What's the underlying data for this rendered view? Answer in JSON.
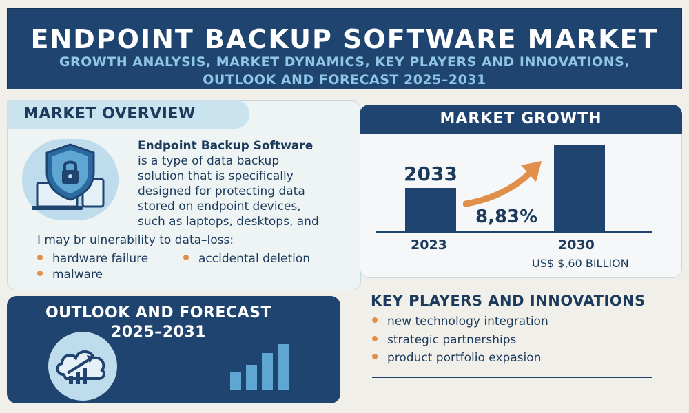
{
  "header": {
    "title": "ENDPOINT BACKUP SOFTWARE MARKET",
    "subtitle_line1": "GROWTH ANALYSIS, MARKET DYNAMICS, KEY PLAYERS AND INNOVATIONS,",
    "subtitle_line2": "OUTLOOK AND FORECAST 2025–2031"
  },
  "overview": {
    "heading": "MARKET OVERVIEW",
    "lead": "Endpoint Backup Software",
    "body_lines": [
      "is a type of data backup",
      "solution that is specifically",
      "designed for protecting data",
      "stored on endpoint devices,",
      "such as laptops, desktops, and"
    ],
    "vulnerability_line": "I  may br ulnerability to data–loss:",
    "bullets": [
      "hardware failure",
      "accidental deletion",
      "malware"
    ]
  },
  "growth": {
    "heading": "MARKET GROWTH",
    "bar_left_label": "2033",
    "cagr": "8,83%",
    "year_left": "2023",
    "year_right": "2030",
    "value_right": "US$ $,60 BILLION",
    "bar_values": [
      0.5,
      1.0
    ]
  },
  "outlook": {
    "heading_line1": "OUTLOOK AND FORECAST",
    "heading_line2": "2025–2031",
    "mini_bar_values": [
      0.4,
      0.55,
      0.8,
      1.0
    ]
  },
  "key_players": {
    "heading": "KEY PLAYERS AND INNOVATIONS",
    "items": [
      "new technology integration",
      "strategic partnerships",
      "product portfolio expasion"
    ]
  },
  "colors": {
    "navy": "#1f4470",
    "light_blue": "#bfdcec",
    "accent_orange": "#e0904a",
    "background": "#f1efea"
  }
}
